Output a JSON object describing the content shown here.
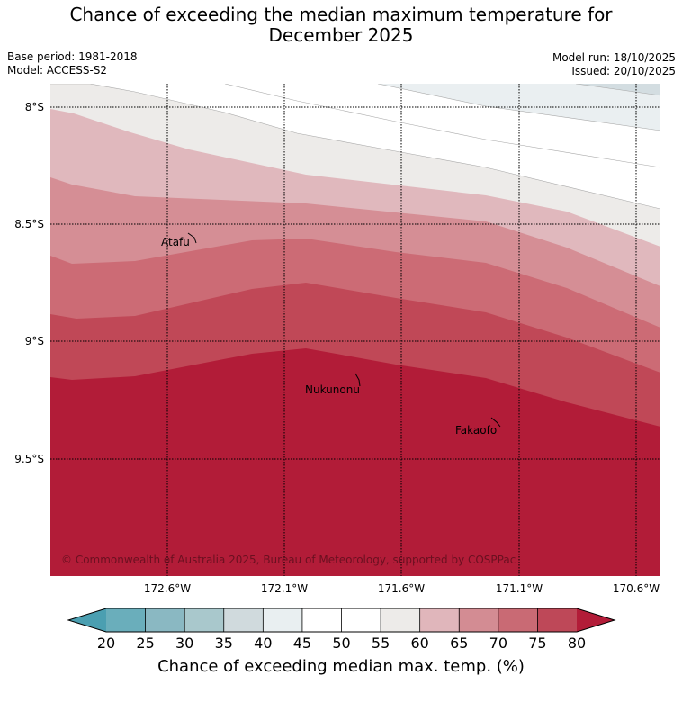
{
  "title_line1": "Chance of exceeding the median maximum temperature for",
  "title_line2": "December 2025",
  "base_period": "Base period: 1981-2018",
  "model": "Model: ACCESS-S2",
  "model_run": "Model run: 18/10/2025",
  "issued": "Issued: 20/10/2025",
  "lat_labels": [
    "8°S",
    "8.5°S",
    "9°S",
    "9.5°S"
  ],
  "lon_labels": [
    "172.6°W",
    "172.1°W",
    "171.6°W",
    "171.1°W",
    "170.6°W"
  ],
  "places": {
    "atafu": "Atafu",
    "nukunonu": "Nukunonu",
    "fakaofo": "Fakaofo"
  },
  "copyright": "© Commonwealth of Australia 2025, Bureau of Meteorology, supported by COSPPac",
  "colorbar": {
    "ticks": [
      "20",
      "25",
      "30",
      "35",
      "40",
      "45",
      "50",
      "55",
      "60",
      "65",
      "70",
      "75",
      "80"
    ],
    "label": "Chance of exceeding median max. temp. (%)",
    "colors": [
      "#6aaebb",
      "#8ab8c2",
      "#a9c8cc",
      "#d0dadd",
      "#e9eff1",
      "#ffffff",
      "#ffffff",
      "#edebe9",
      "#e0b6bb",
      "#d38c93",
      "#c96a74",
      "#be4858"
    ],
    "low_extend": "#4b9fb1",
    "high_extend": "#b21c38"
  },
  "map_colors": {
    "c35_40": "#d3dde1",
    "c40_45": "#eaeff1",
    "c45_55": "#ffffff",
    "c55_60": "#edebe9",
    "c60_65": "#e0b8bd",
    "c65_70": "#d58e95",
    "c70_75": "#cc6b75",
    "c75_80": "#c04857",
    "c80": "#b21c38"
  }
}
